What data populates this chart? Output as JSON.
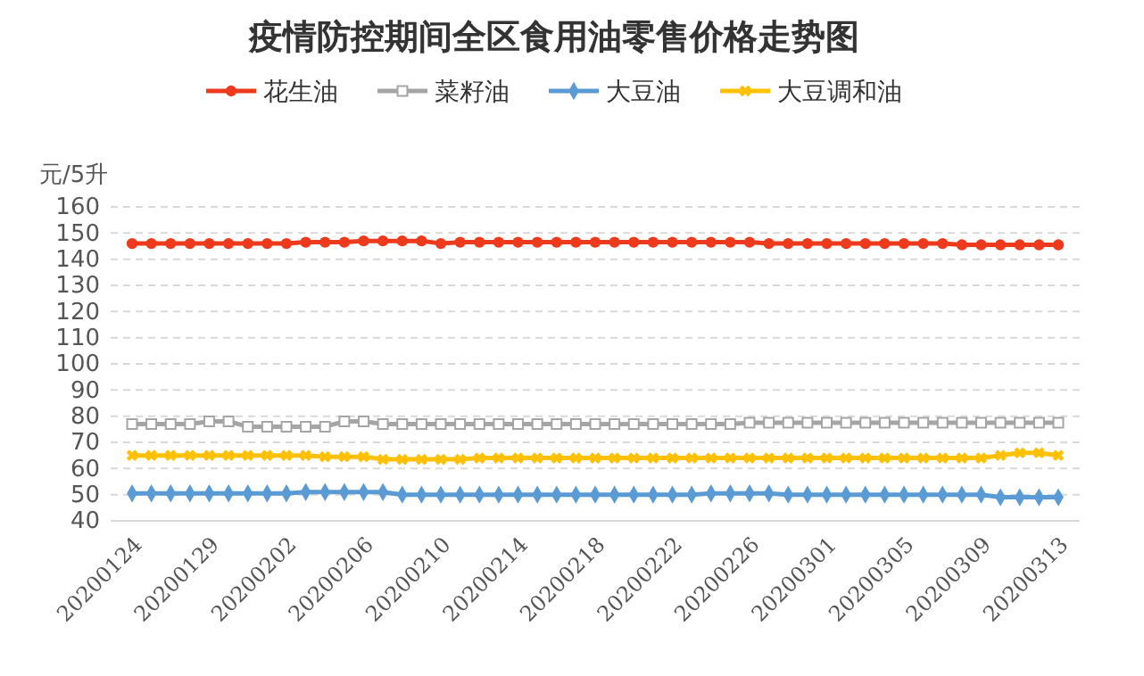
{
  "chart_data": {
    "type": "line",
    "title": "疫情防控期间全区食用油零售价格走势图",
    "ylabel": "元/5升",
    "categories": [
      "20200124",
      null,
      null,
      null,
      "20200129",
      null,
      null,
      null,
      "20200202",
      null,
      null,
      null,
      "20200206",
      null,
      null,
      null,
      "20200210",
      null,
      null,
      null,
      "20200214",
      null,
      null,
      null,
      "20200218",
      null,
      null,
      null,
      "20200222",
      null,
      null,
      null,
      "20200226",
      null,
      null,
      null,
      "20200301",
      null,
      null,
      null,
      "20200305",
      null,
      null,
      null,
      "20200309",
      null,
      null,
      null,
      "20200313"
    ],
    "series": [
      {
        "name": "花生油",
        "color": "#ee3a1c",
        "marker": "circle",
        "values": [
          146,
          146,
          146,
          146,
          146,
          146,
          146,
          146,
          146,
          146.5,
          146.5,
          146.5,
          147,
          147,
          147,
          147,
          146,
          146.5,
          146.5,
          146.5,
          146.5,
          146.5,
          146.5,
          146.5,
          146.5,
          146.5,
          146.5,
          146.5,
          146.5,
          146.5,
          146.5,
          146.5,
          146.5,
          146,
          146,
          146,
          146,
          146,
          146,
          146,
          146,
          146,
          146,
          145.5,
          145.5,
          145.5,
          145.5,
          145.5,
          145.5
        ]
      },
      {
        "name": "菜籽油",
        "color": "#a5a5a5",
        "marker": "square",
        "values": [
          77,
          77,
          77,
          77,
          78,
          78,
          76,
          76,
          76,
          76,
          76,
          78,
          78,
          77,
          77,
          77,
          77,
          77,
          77,
          77,
          77,
          77,
          77,
          77,
          77,
          77,
          77,
          77,
          77,
          77,
          77,
          77,
          77.5,
          77.5,
          77.5,
          77.5,
          77.5,
          77.5,
          77.5,
          77.5,
          77.5,
          77.5,
          77.5,
          77.5,
          77.5,
          77.5,
          77.5,
          77.5,
          77.5
        ]
      },
      {
        "name": "大豆油",
        "color": "#5b9bd5",
        "marker": "diamond",
        "values": [
          50.5,
          50.5,
          50.5,
          50.5,
          50.5,
          50.5,
          50.5,
          50.5,
          50.5,
          51,
          51,
          51,
          51,
          51,
          50,
          50,
          50,
          50,
          50,
          50,
          50,
          50,
          50,
          50,
          50,
          50,
          50,
          50,
          50,
          50,
          50.5,
          50.5,
          50.5,
          50.5,
          50,
          50,
          50,
          50,
          50,
          50,
          50,
          50,
          50,
          50,
          50,
          49,
          49,
          49,
          49
        ]
      },
      {
        "name": "大豆调和油",
        "color": "#ffc000",
        "marker": "cross",
        "values": [
          65,
          65,
          65,
          65,
          65,
          65,
          65,
          65,
          65,
          65,
          64.5,
          64.5,
          64.5,
          63.5,
          63.5,
          63.5,
          63.5,
          63.5,
          64,
          64,
          64,
          64,
          64,
          64,
          64,
          64,
          64,
          64,
          64,
          64,
          64,
          64,
          64,
          64,
          64,
          64,
          64,
          64,
          64,
          64,
          64,
          64,
          64,
          64,
          64,
          65,
          66,
          66,
          65
        ]
      }
    ],
    "ylim": [
      40,
      160
    ],
    "yticks": [
      40,
      50,
      60,
      70,
      80,
      90,
      100,
      110,
      120,
      130,
      140,
      150,
      160
    ],
    "grid": "y",
    "legend": "top",
    "line_style": "solid"
  }
}
